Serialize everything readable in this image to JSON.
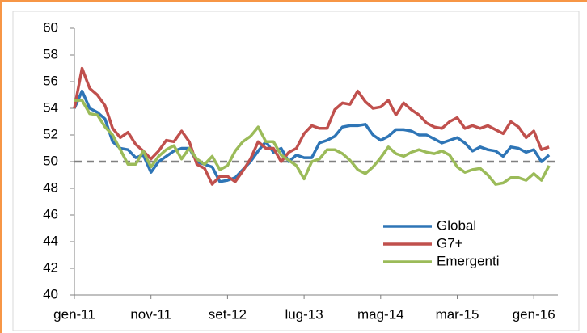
{
  "chart_data": {
    "type": "line",
    "categories": [
      "gen-11",
      null,
      null,
      null,
      null,
      null,
      null,
      null,
      null,
      null,
      "nov-11",
      null,
      null,
      null,
      null,
      null,
      null,
      null,
      null,
      null,
      "set-12",
      null,
      null,
      null,
      null,
      null,
      null,
      null,
      null,
      null,
      "lug-13",
      null,
      null,
      null,
      null,
      null,
      null,
      null,
      null,
      null,
      "mag-14",
      null,
      null,
      null,
      null,
      null,
      null,
      null,
      null,
      null,
      "mar-15",
      null,
      null,
      null,
      null,
      null,
      null,
      null,
      null,
      null,
      "gen-16",
      null,
      null
    ],
    "series": [
      {
        "name": "Global",
        "color": "#2e75b6",
        "values": [
          54.0,
          55.3,
          54.0,
          53.7,
          53.2,
          51.5,
          51.0,
          50.9,
          50.3,
          50.5,
          49.2,
          50.0,
          50.4,
          50.8,
          51.0,
          51.0,
          50.0,
          49.8,
          49.6,
          48.5,
          48.6,
          48.8,
          49.4,
          50.0,
          50.8,
          51.5,
          50.7,
          51.0,
          50.0,
          50.5,
          50.3,
          50.3,
          51.4,
          51.6,
          51.9,
          52.6,
          52.7,
          52.7,
          52.8,
          52.0,
          51.6,
          51.9,
          52.4,
          52.4,
          52.3,
          52.0,
          52.0,
          51.7,
          51.4,
          51.6,
          51.8,
          51.4,
          50.8,
          51.1,
          50.9,
          50.8,
          50.4,
          51.1,
          51.0,
          50.7,
          50.9,
          50.0,
          50.5
        ]
      },
      {
        "name": "G7+",
        "color": "#c0504d",
        "values": [
          54.0,
          57.0,
          55.5,
          55.0,
          54.2,
          52.5,
          51.8,
          52.2,
          51.3,
          50.8,
          50.2,
          50.8,
          51.6,
          51.5,
          52.3,
          51.5,
          49.8,
          49.5,
          48.3,
          48.9,
          48.9,
          48.5,
          49.3,
          50.2,
          51.5,
          51.0,
          51.0,
          50.0,
          50.7,
          51.0,
          52.1,
          52.7,
          52.5,
          52.5,
          53.9,
          54.4,
          54.3,
          55.3,
          54.5,
          54.0,
          54.1,
          54.6,
          53.5,
          54.4,
          53.9,
          53.5,
          52.9,
          52.6,
          52.5,
          53.0,
          53.3,
          52.5,
          52.7,
          52.5,
          52.7,
          52.4,
          52.1,
          53.0,
          52.6,
          51.8,
          52.3,
          50.9,
          51.1
        ]
      },
      {
        "name": "Emergenti",
        "color": "#9bbb59",
        "values": [
          54.6,
          54.6,
          53.6,
          53.5,
          52.6,
          52.0,
          50.9,
          49.8,
          49.8,
          50.8,
          49.6,
          50.4,
          50.9,
          51.2,
          50.2,
          51.0,
          50.2,
          49.8,
          50.4,
          49.4,
          49.7,
          50.8,
          51.5,
          51.9,
          52.6,
          51.5,
          51.5,
          50.5,
          50.1,
          49.7,
          48.7,
          50.0,
          50.2,
          50.9,
          50.9,
          50.6,
          50.1,
          49.4,
          49.1,
          49.6,
          50.3,
          51.1,
          50.6,
          50.4,
          50.7,
          50.9,
          50.7,
          50.6,
          50.8,
          50.5,
          49.6,
          49.2,
          49.4,
          49.5,
          49.0,
          48.3,
          48.4,
          48.8,
          48.8,
          48.6,
          49.1,
          48.6,
          49.7
        ]
      }
    ],
    "ylim": [
      40,
      60
    ],
    "yticks": [
      40,
      42,
      44,
      46,
      48,
      50,
      52,
      54,
      56,
      58,
      60
    ],
    "reference_line": 50,
    "legend": "lower-right",
    "grid": false
  }
}
